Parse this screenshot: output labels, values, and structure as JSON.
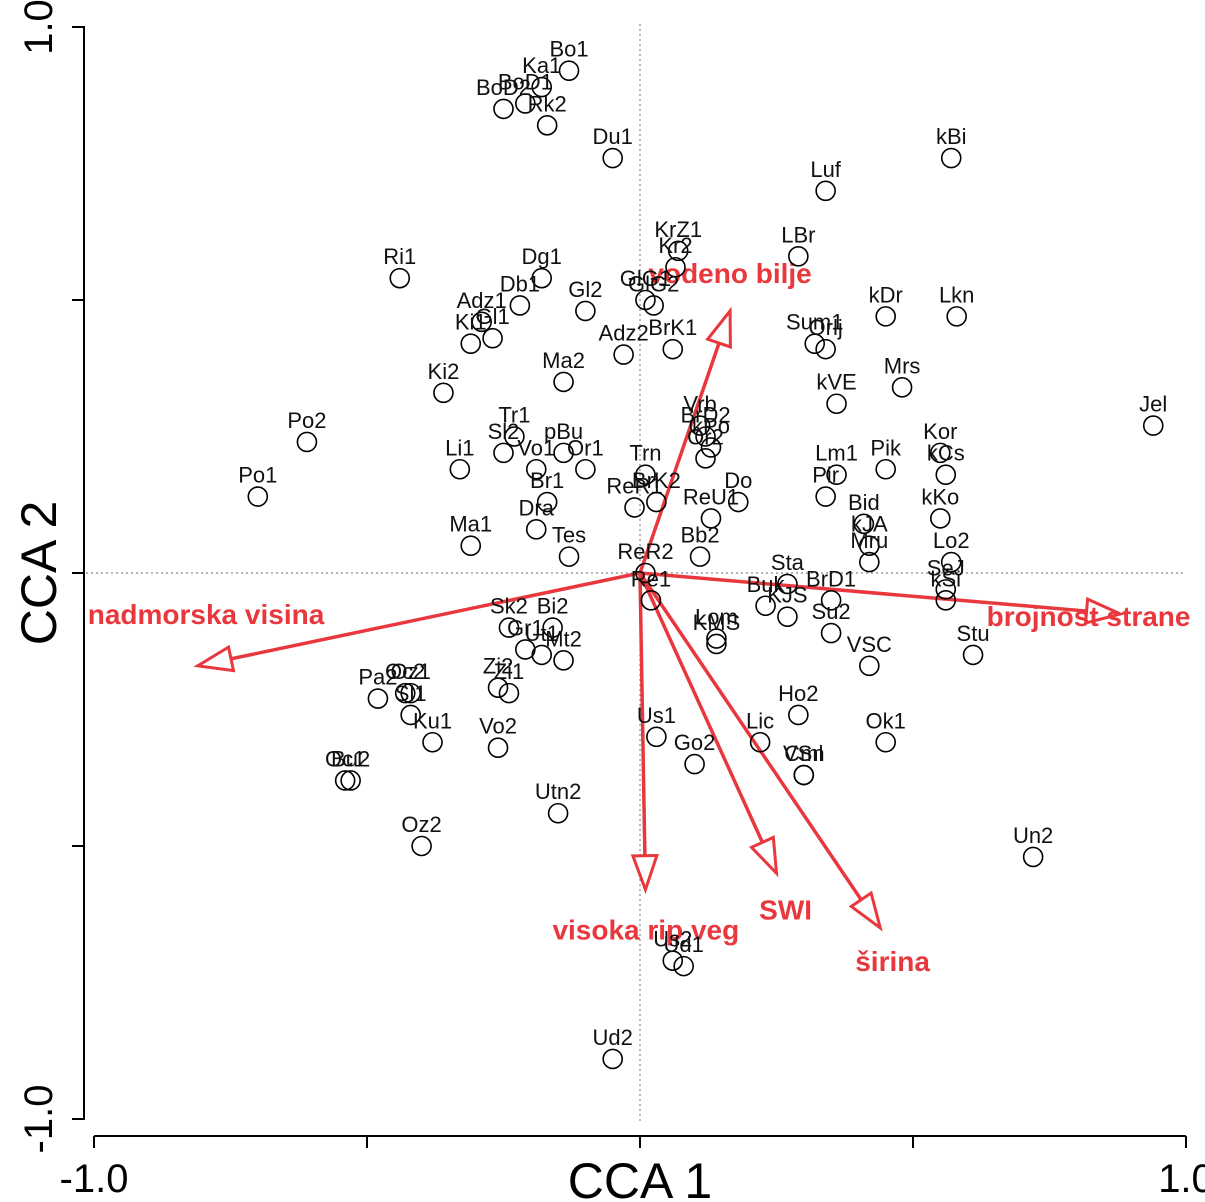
{
  "chart_data": {
    "type": "scatter",
    "xlabel": "CCA 1",
    "ylabel": "CCA 2",
    "xlim": [
      -1.0,
      1.0
    ],
    "ylim": [
      -1.0,
      1.0
    ],
    "x_ticks": [
      -1.0,
      -0.5,
      0.0,
      0.5,
      1.0
    ],
    "y_ticks": [
      -1.0,
      -0.5,
      0.0,
      0.5,
      1.0
    ],
    "x_tick_labels": [
      "-1.0",
      "",
      "",
      "",
      "1.0"
    ],
    "y_tick_labels": [
      "-1.0",
      "",
      "",
      "",
      "1.0"
    ],
    "grid": false,
    "zero_lines": true,
    "sites": [
      {
        "label": "Bo1",
        "x": -0.13,
        "y": 0.92
      },
      {
        "label": "Ka1",
        "x": -0.18,
        "y": 0.89
      },
      {
        "label": "BoD1",
        "x": -0.21,
        "y": 0.86
      },
      {
        "label": "BoD2",
        "x": -0.25,
        "y": 0.85
      },
      {
        "label": "Rk2",
        "x": -0.17,
        "y": 0.82
      },
      {
        "label": "Du1",
        "x": -0.05,
        "y": 0.76
      },
      {
        "label": "kBi",
        "x": 0.57,
        "y": 0.76
      },
      {
        "label": "Luf",
        "x": 0.34,
        "y": 0.7
      },
      {
        "label": "LBr",
        "x": 0.29,
        "y": 0.58
      },
      {
        "label": "KrZ1",
        "x": 0.07,
        "y": 0.59
      },
      {
        "label": "Kr2",
        "x": 0.065,
        "y": 0.56
      },
      {
        "label": "Ri1",
        "x": -0.44,
        "y": 0.54
      },
      {
        "label": "Dg1",
        "x": -0.18,
        "y": 0.54
      },
      {
        "label": "GlG1",
        "x": 0.01,
        "y": 0.5
      },
      {
        "label": "GlG2",
        "x": 0.025,
        "y": 0.49
      },
      {
        "label": "Db1",
        "x": -0.22,
        "y": 0.49
      },
      {
        "label": "Gl2",
        "x": -0.1,
        "y": 0.48
      },
      {
        "label": "kDr",
        "x": 0.45,
        "y": 0.47
      },
      {
        "label": "Lkn",
        "x": 0.58,
        "y": 0.47
      },
      {
        "label": "Adz1",
        "x": -0.29,
        "y": 0.46
      },
      {
        "label": "Gl1",
        "x": -0.27,
        "y": 0.43
      },
      {
        "label": "Sum1",
        "x": 0.32,
        "y": 0.42
      },
      {
        "label": "Orlj",
        "x": 0.34,
        "y": 0.41
      },
      {
        "label": "Ki1",
        "x": -0.31,
        "y": 0.42
      },
      {
        "label": "Adz2",
        "x": -0.03,
        "y": 0.4
      },
      {
        "label": "BrK1",
        "x": 0.06,
        "y": 0.41
      },
      {
        "label": "Mrs",
        "x": 0.48,
        "y": 0.34
      },
      {
        "label": "Ma2",
        "x": -0.14,
        "y": 0.35
      },
      {
        "label": "Ki2",
        "x": -0.36,
        "y": 0.33
      },
      {
        "label": "kVE",
        "x": 0.36,
        "y": 0.31
      },
      {
        "label": "Po2",
        "x": -0.61,
        "y": 0.24
      },
      {
        "label": "Tr1",
        "x": -0.23,
        "y": 0.25
      },
      {
        "label": "Sl2",
        "x": -0.25,
        "y": 0.22
      },
      {
        "label": "pBu",
        "x": -0.14,
        "y": 0.22
      },
      {
        "label": "Vrb",
        "x": 0.11,
        "y": 0.27
      },
      {
        "label": "BrD2",
        "x": 0.12,
        "y": 0.25
      },
      {
        "label": "kPo",
        "x": 0.13,
        "y": 0.23
      },
      {
        "label": "Or2",
        "x": 0.12,
        "y": 0.21
      },
      {
        "label": "Li1",
        "x": -0.33,
        "y": 0.19
      },
      {
        "label": "Vo1",
        "x": -0.19,
        "y": 0.19
      },
      {
        "label": "Or1",
        "x": -0.1,
        "y": 0.19
      },
      {
        "label": "Trn",
        "x": 0.01,
        "y": 0.18
      },
      {
        "label": "Kor",
        "x": 0.55,
        "y": 0.22
      },
      {
        "label": "Jel",
        "x": 0.94,
        "y": 0.27
      },
      {
        "label": "Pik",
        "x": 0.45,
        "y": 0.19
      },
      {
        "label": "Lm1",
        "x": 0.36,
        "y": 0.18
      },
      {
        "label": "kCs",
        "x": 0.56,
        "y": 0.18
      },
      {
        "label": "Po1",
        "x": -0.7,
        "y": 0.14
      },
      {
        "label": "Br1",
        "x": -0.17,
        "y": 0.13
      },
      {
        "label": "ReR1",
        "x": -0.01,
        "y": 0.12
      },
      {
        "label": "BrK2",
        "x": 0.03,
        "y": 0.13
      },
      {
        "label": "Do",
        "x": 0.18,
        "y": 0.13
      },
      {
        "label": "Pir",
        "x": 0.34,
        "y": 0.14
      },
      {
        "label": "ReU1",
        "x": 0.13,
        "y": 0.1
      },
      {
        "label": "kKo",
        "x": 0.55,
        "y": 0.1
      },
      {
        "label": "Bid",
        "x": 0.41,
        "y": 0.09
      },
      {
        "label": "Ma1",
        "x": -0.31,
        "y": 0.05
      },
      {
        "label": "Dra",
        "x": -0.19,
        "y": 0.08
      },
      {
        "label": "Tes",
        "x": -0.13,
        "y": 0.03
      },
      {
        "label": "Bb2",
        "x": 0.11,
        "y": 0.03
      },
      {
        "label": "kJA",
        "x": 0.42,
        "y": 0.05
      },
      {
        "label": "Mru",
        "x": 0.42,
        "y": 0.02
      },
      {
        "label": "Lo2",
        "x": 0.57,
        "y": 0.02
      },
      {
        "label": "ReR2",
        "x": 0.01,
        "y": 0.0
      },
      {
        "label": "Sta",
        "x": 0.27,
        "y": -0.02
      },
      {
        "label": "Re1",
        "x": 0.02,
        "y": -0.05
      },
      {
        "label": "BrD1",
        "x": 0.35,
        "y": -0.05
      },
      {
        "label": "Buk",
        "x": 0.23,
        "y": -0.06
      },
      {
        "label": "KJS",
        "x": 0.27,
        "y": -0.08
      },
      {
        "label": "SeJ",
        "x": 0.56,
        "y": -0.03
      },
      {
        "label": "kSi",
        "x": 0.56,
        "y": -0.05
      },
      {
        "label": "Sk2",
        "x": -0.24,
        "y": -0.1
      },
      {
        "label": "Bi2",
        "x": -0.16,
        "y": -0.1
      },
      {
        "label": "Lom",
        "x": 0.14,
        "y": -0.12
      },
      {
        "label": "KMS",
        "x": 0.14,
        "y": -0.13
      },
      {
        "label": "Su2",
        "x": 0.35,
        "y": -0.11
      },
      {
        "label": "Stu",
        "x": 0.61,
        "y": -0.15
      },
      {
        "label": "VSC",
        "x": 0.42,
        "y": -0.17
      },
      {
        "label": "Gr1",
        "x": -0.21,
        "y": -0.14
      },
      {
        "label": "Ut1",
        "x": -0.18,
        "y": -0.15
      },
      {
        "label": "Mt2",
        "x": -0.14,
        "y": -0.16
      },
      {
        "label": "Pa2",
        "x": -0.48,
        "y": -0.23
      },
      {
        "label": "Oc2",
        "x": -0.43,
        "y": -0.22
      },
      {
        "label": "Oz1",
        "x": -0.42,
        "y": -0.22
      },
      {
        "label": "Zi2",
        "x": -0.26,
        "y": -0.21
      },
      {
        "label": "Zi1",
        "x": -0.24,
        "y": -0.22
      },
      {
        "label": "Sl1",
        "x": -0.42,
        "y": -0.26
      },
      {
        "label": "Ho2",
        "x": 0.29,
        "y": -0.26
      },
      {
        "label": "Ok1",
        "x": 0.45,
        "y": -0.31
      },
      {
        "label": "Ku1",
        "x": -0.38,
        "y": -0.31
      },
      {
        "label": "Bu2",
        "x": -0.53,
        "y": -0.38
      },
      {
        "label": "Vo2",
        "x": -0.26,
        "y": -0.32
      },
      {
        "label": "Us1",
        "x": 0.03,
        "y": -0.3
      },
      {
        "label": "Lic",
        "x": 0.22,
        "y": -0.31
      },
      {
        "label": "Cml",
        "x": 0.3,
        "y": -0.37
      },
      {
        "label": "Go2",
        "x": 0.1,
        "y": -0.35
      },
      {
        "label": "VSn",
        "x": 0.3,
        "y": -0.37
      },
      {
        "label": "Oc1",
        "x": -0.54,
        "y": -0.38
      },
      {
        "label": "Utn2",
        "x": -0.15,
        "y": -0.44
      },
      {
        "label": "Oz2",
        "x": -0.4,
        "y": -0.5
      },
      {
        "label": "Un2",
        "x": 0.72,
        "y": -0.52
      },
      {
        "label": "Us2",
        "x": 0.06,
        "y": -0.71
      },
      {
        "label": "Ud1",
        "x": 0.08,
        "y": -0.72
      },
      {
        "label": "Ud2",
        "x": -0.05,
        "y": -0.89
      }
    ],
    "vectors": [
      {
        "label": "vodeno bilje",
        "x": 0.165,
        "y": 0.48
      },
      {
        "label": "brojnost strane",
        "x": 0.88,
        "y": -0.075
      },
      {
        "label": "nadmorska visina",
        "x": -0.81,
        "y": -0.17
      },
      {
        "label": "visoka rip veg",
        "x": 0.01,
        "y": -0.58
      },
      {
        "label": "SWI",
        "x": 0.25,
        "y": -0.55
      },
      {
        "label": "širina",
        "x": 0.44,
        "y": -0.65
      }
    ]
  }
}
